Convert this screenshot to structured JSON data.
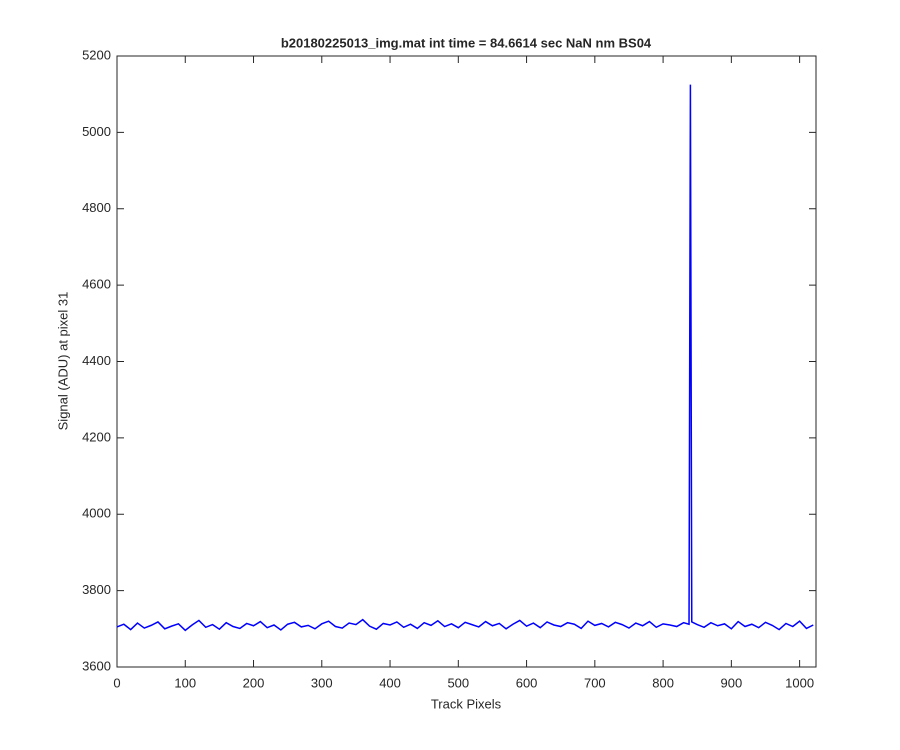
{
  "chart_data": {
    "type": "line",
    "title": "b20180225013_img.mat int time = 84.6614 sec  NaN nm BS04",
    "x_label": "Track Pixels",
    "y_label": "Signal (ADU) at pixel 31",
    "xlim": [
      0,
      1024
    ],
    "ylim": [
      3600,
      5200
    ],
    "xticks": [
      0,
      100,
      200,
      300,
      400,
      500,
      600,
      700,
      800,
      900,
      1000
    ],
    "yticks": [
      3600,
      3800,
      4000,
      4200,
      4400,
      4600,
      4800,
      5000,
      5200
    ],
    "grid": false,
    "series": [
      {
        "color": "#0000ff",
        "x": [
          0,
          10,
          20,
          30,
          40,
          50,
          60,
          70,
          80,
          90,
          100,
          110,
          120,
          130,
          140,
          150,
          160,
          170,
          180,
          190,
          200,
          210,
          220,
          230,
          240,
          250,
          260,
          270,
          280,
          290,
          300,
          310,
          320,
          330,
          340,
          350,
          360,
          370,
          380,
          390,
          400,
          410,
          420,
          430,
          440,
          450,
          460,
          470,
          480,
          490,
          500,
          510,
          520,
          530,
          540,
          550,
          560,
          570,
          580,
          590,
          600,
          610,
          620,
          630,
          640,
          650,
          660,
          670,
          680,
          690,
          700,
          710,
          720,
          730,
          740,
          750,
          760,
          770,
          780,
          790,
          800,
          810,
          820,
          830,
          838,
          840,
          842,
          850,
          860,
          870,
          880,
          890,
          900,
          910,
          920,
          930,
          940,
          950,
          960,
          970,
          980,
          990,
          1000,
          1010,
          1020
        ],
        "values": [
          3705,
          3712,
          3698,
          3715,
          3702,
          3709,
          3718,
          3700,
          3707,
          3713,
          3696,
          3710,
          3722,
          3704,
          3711,
          3699,
          3716,
          3706,
          3701,
          3714,
          3708,
          3719,
          3703,
          3710,
          3697,
          3712,
          3717,
          3705,
          3709,
          3700,
          3713,
          3720,
          3706,
          3702,
          3715,
          3711,
          3724,
          3707,
          3699,
          3714,
          3710,
          3718,
          3704,
          3712,
          3701,
          3716,
          3709,
          3721,
          3706,
          3713,
          3703,
          3717,
          3711,
          3705,
          3719,
          3708,
          3714,
          3700,
          3712,
          3722,
          3707,
          3715,
          3703,
          3718,
          3710,
          3706,
          3716,
          3712,
          3701,
          3720,
          3709,
          3714,
          3705,
          3717,
          3711,
          3702,
          3715,
          3708,
          3719,
          3704,
          3713,
          3710,
          3706,
          3716,
          3712,
          5125,
          3718,
          3711,
          3704,
          3716,
          3708,
          3713,
          3700,
          3719,
          3706,
          3712,
          3703,
          3717,
          3709,
          3698,
          3714,
          3706,
          3720,
          3701,
          3710
        ]
      }
    ]
  }
}
